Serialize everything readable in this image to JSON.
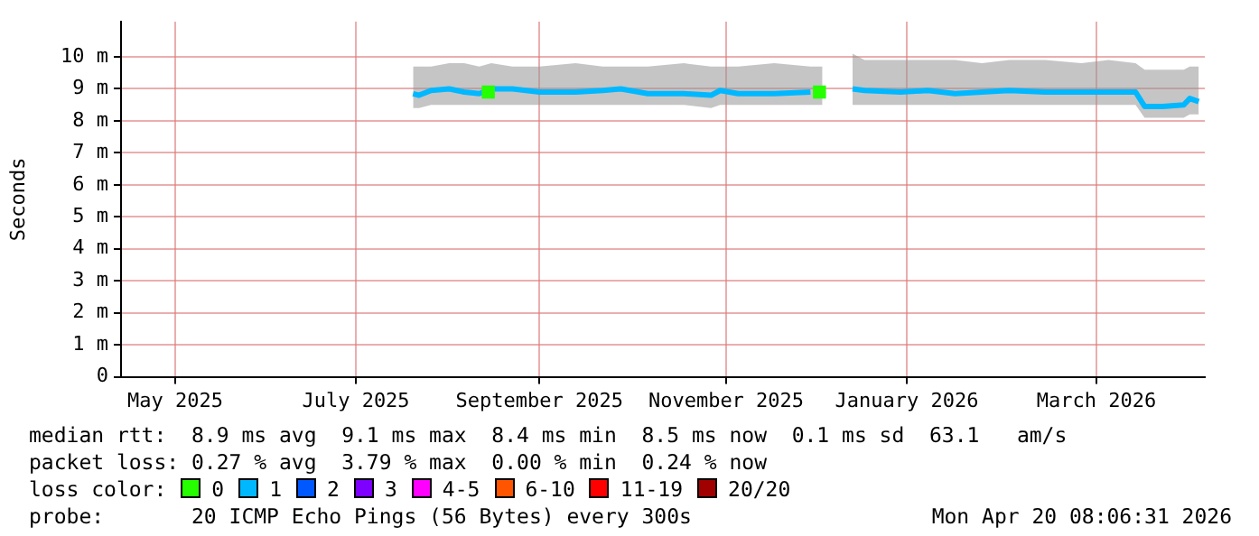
{
  "chart_data": {
    "type": "line",
    "ylabel": "Seconds",
    "legend_title": "loss color:",
    "legend": "bottom",
    "grid": true,
    "marker": "none",
    "xlim": [
      "2025-04-25",
      "2026-04-20"
    ],
    "xticks": [
      {
        "value": "2025-05-13",
        "label": "May 2025"
      },
      {
        "value": "2025-07-12",
        "label": "July 2025"
      },
      {
        "value": "2025-09-11",
        "label": "September 2025"
      },
      {
        "value": "2025-11-12",
        "label": "November 2025"
      },
      {
        "value": "2026-01-11",
        "label": "January 2026"
      },
      {
        "value": "2026-03-15",
        "label": "March 2026"
      }
    ],
    "ylim": [
      0,
      11.1
    ],
    "yticks": [
      0,
      {
        "value": 1,
        "label": "1 m"
      },
      {
        "value": 2,
        "label": "2 m"
      },
      {
        "value": 3,
        "label": "3 m"
      },
      {
        "value": 4,
        "label": "4 m"
      },
      {
        "value": 5,
        "label": "5 m"
      },
      {
        "value": 6,
        "label": "6 m"
      },
      {
        "value": 7,
        "label": "7 m"
      },
      {
        "value": 8,
        "label": "8 m"
      },
      {
        "value": 9,
        "label": "9 m"
      },
      {
        "value": 10,
        "label": "10 m"
      }
    ],
    "x": [
      "2025-07-31",
      "2025-08-02",
      "2025-08-06",
      "2025-08-12",
      "2025-08-17",
      "2025-08-22",
      "2025-08-26",
      "2025-09-02",
      "2025-09-11",
      "2025-09-23",
      "2025-10-02",
      "2025-10-08",
      "2025-10-17",
      "2025-10-29",
      "2025-11-07",
      "2025-11-10",
      "2025-11-16",
      "2025-11-28",
      "2025-12-10",
      "2025-12-14",
      "2025-12-18",
      "2025-12-24",
      "2025-12-28",
      "2026-01-09",
      "2026-01-18",
      "2026-01-27",
      "2026-02-05",
      "2026-02-14",
      "2026-02-26",
      "2026-03-10",
      "2026-03-19",
      "2026-03-28",
      "2026-03-31",
      "2026-04-06",
      "2026-04-13",
      "2026-04-15",
      "2026-04-18"
    ],
    "series": [
      {
        "name": "0",
        "type": "scatter",
        "color": "#26ff00",
        "marker": "square",
        "x": [
          "2025-08-25",
          "2025-12-13"
        ],
        "values": [
          8.9,
          8.9
        ]
      },
      {
        "name": "1",
        "color": "#00b8ff",
        "values": [
          8.85,
          8.8,
          8.95,
          9.0,
          8.9,
          8.85,
          9.0,
          9.0,
          8.9,
          8.9,
          8.95,
          9.0,
          8.85,
          8.85,
          8.8,
          8.95,
          8.85,
          8.85,
          8.9,
          null,
          null,
          9.0,
          8.95,
          8.9,
          8.95,
          8.85,
          8.9,
          8.95,
          8.9,
          8.9,
          8.9,
          8.9,
          8.45,
          8.45,
          8.5,
          8.7,
          8.6
        ],
        "lower": [
          8.4,
          8.4,
          8.5,
          8.5,
          8.5,
          8.5,
          8.5,
          8.5,
          8.5,
          8.5,
          8.5,
          8.5,
          8.5,
          8.5,
          8.4,
          8.5,
          8.5,
          8.5,
          8.5,
          8.5,
          null,
          8.5,
          8.5,
          8.5,
          8.5,
          8.5,
          8.5,
          8.5,
          8.5,
          8.5,
          8.5,
          8.5,
          8.1,
          8.1,
          8.1,
          8.2,
          8.2
        ],
        "upper": [
          9.7,
          9.7,
          9.7,
          9.8,
          9.8,
          9.7,
          9.8,
          9.7,
          9.7,
          9.8,
          9.7,
          9.7,
          9.7,
          9.8,
          9.7,
          9.7,
          9.7,
          9.8,
          9.7,
          9.7,
          null,
          10.1,
          9.9,
          9.9,
          9.9,
          9.9,
          9.8,
          9.9,
          9.9,
          9.8,
          9.9,
          9.8,
          9.6,
          9.6,
          9.6,
          9.7,
          9.7
        ]
      },
      {
        "name": "2",
        "color": "#0059ff",
        "values": [
          null,
          null,
          null,
          null,
          null,
          null,
          null,
          null,
          null,
          null,
          null,
          null,
          null,
          null,
          null,
          null,
          null,
          null,
          null,
          null,
          null,
          null,
          null,
          null,
          null,
          null,
          null,
          null,
          null,
          null,
          null,
          null,
          null,
          null,
          null,
          null,
          null
        ]
      },
      {
        "name": "3",
        "color": "#7e00ff",
        "values": [
          null,
          null,
          null,
          null,
          null,
          null,
          null,
          null,
          null,
          null,
          null,
          null,
          null,
          null,
          null,
          null,
          null,
          null,
          null,
          null,
          null,
          null,
          null,
          null,
          null,
          null,
          null,
          null,
          null,
          null,
          null,
          null,
          null,
          null,
          null,
          null,
          null
        ]
      },
      {
        "name": "4-5",
        "color": "#ff00ff",
        "values": [
          null,
          null,
          null,
          null,
          null,
          null,
          null,
          null,
          null,
          null,
          null,
          null,
          null,
          null,
          null,
          null,
          null,
          null,
          null,
          null,
          null,
          null,
          null,
          null,
          null,
          null,
          null,
          null,
          null,
          null,
          null,
          null,
          null,
          null,
          null,
          null,
          null
        ]
      },
      {
        "name": "6-10",
        "color": "#ff5500",
        "values": [
          null,
          null,
          null,
          null,
          null,
          null,
          null,
          null,
          null,
          null,
          null,
          null,
          null,
          null,
          null,
          null,
          null,
          null,
          null,
          null,
          null,
          null,
          null,
          null,
          null,
          null,
          null,
          null,
          null,
          null,
          null,
          null,
          null,
          null,
          null,
          null,
          null
        ]
      },
      {
        "name": "11-19",
        "color": "#ff0000",
        "values": [
          null,
          null,
          null,
          null,
          null,
          null,
          null,
          null,
          null,
          null,
          null,
          null,
          null,
          null,
          null,
          null,
          null,
          null,
          null,
          null,
          null,
          null,
          null,
          null,
          null,
          null,
          null,
          null,
          null,
          null,
          null,
          null,
          null,
          null,
          null,
          null,
          null
        ]
      },
      {
        "name": "20/20",
        "color": "#a10000",
        "values": [
          null,
          null,
          null,
          null,
          null,
          null,
          null,
          null,
          null,
          null,
          null,
          null,
          null,
          null,
          null,
          null,
          null,
          null,
          null,
          null,
          null,
          null,
          null,
          null,
          null,
          null,
          null,
          null,
          null,
          null,
          null,
          null,
          null,
          null,
          null,
          null,
          null
        ]
      }
    ],
    "annotations": [
      "median rtt:  8.9 ms avg  9.1 ms max  8.4 ms min  8.5 ms now  0.1 ms sd  63.1   am/s",
      "packet loss: 0.27 % avg  3.79 % max  0.00 % min  0.24 % now",
      "probe:       20 ICMP Echo Pings (56 Bytes) every 300s",
      "Mon Apr 20 08:06:31 2026"
    ]
  }
}
